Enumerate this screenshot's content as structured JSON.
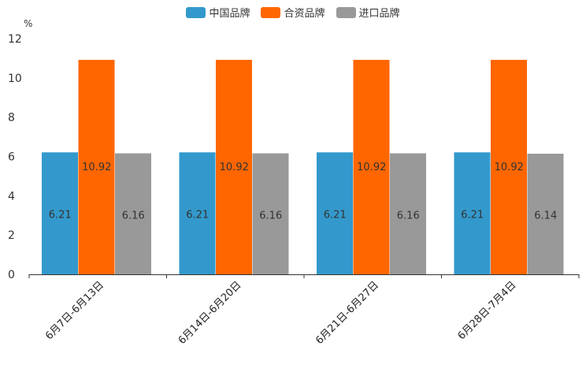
{
  "chart_data": {
    "type": "bar",
    "title": "",
    "xlabel": "",
    "ylabel": "%",
    "ylim": [
      0,
      12
    ],
    "yticks": [
      "0",
      "2",
      "4",
      "6",
      "8",
      "10",
      "12"
    ],
    "categories": [
      "6月7日-6月13日",
      "6月14日-6月20日",
      "6月21日-6月27日",
      "6月28日-7月4日"
    ],
    "series": [
      {
        "name": "中国品牌",
        "color": "#3399cc",
        "values": [
          6.21,
          6.21,
          6.21,
          6.21
        ],
        "labels": [
          "6.21",
          "6.21",
          "6.21",
          "6.21"
        ],
        "label_position": "middle"
      },
      {
        "name": "合资品牌",
        "color": "#ff6600",
        "values": [
          10.92,
          10.92,
          10.92,
          10.92
        ],
        "labels": [
          "10.92",
          "10.92",
          "10.92",
          "10.92"
        ],
        "label_position": "upper"
      },
      {
        "name": "进口品牌",
        "color": "#999999",
        "values": [
          6.16,
          6.16,
          6.16,
          6.14
        ],
        "labels": [
          "6.16",
          "6.16",
          "6.16",
          "6.14"
        ],
        "label_position": "middle"
      }
    ],
    "legend_position": "top-center",
    "grid": false
  }
}
